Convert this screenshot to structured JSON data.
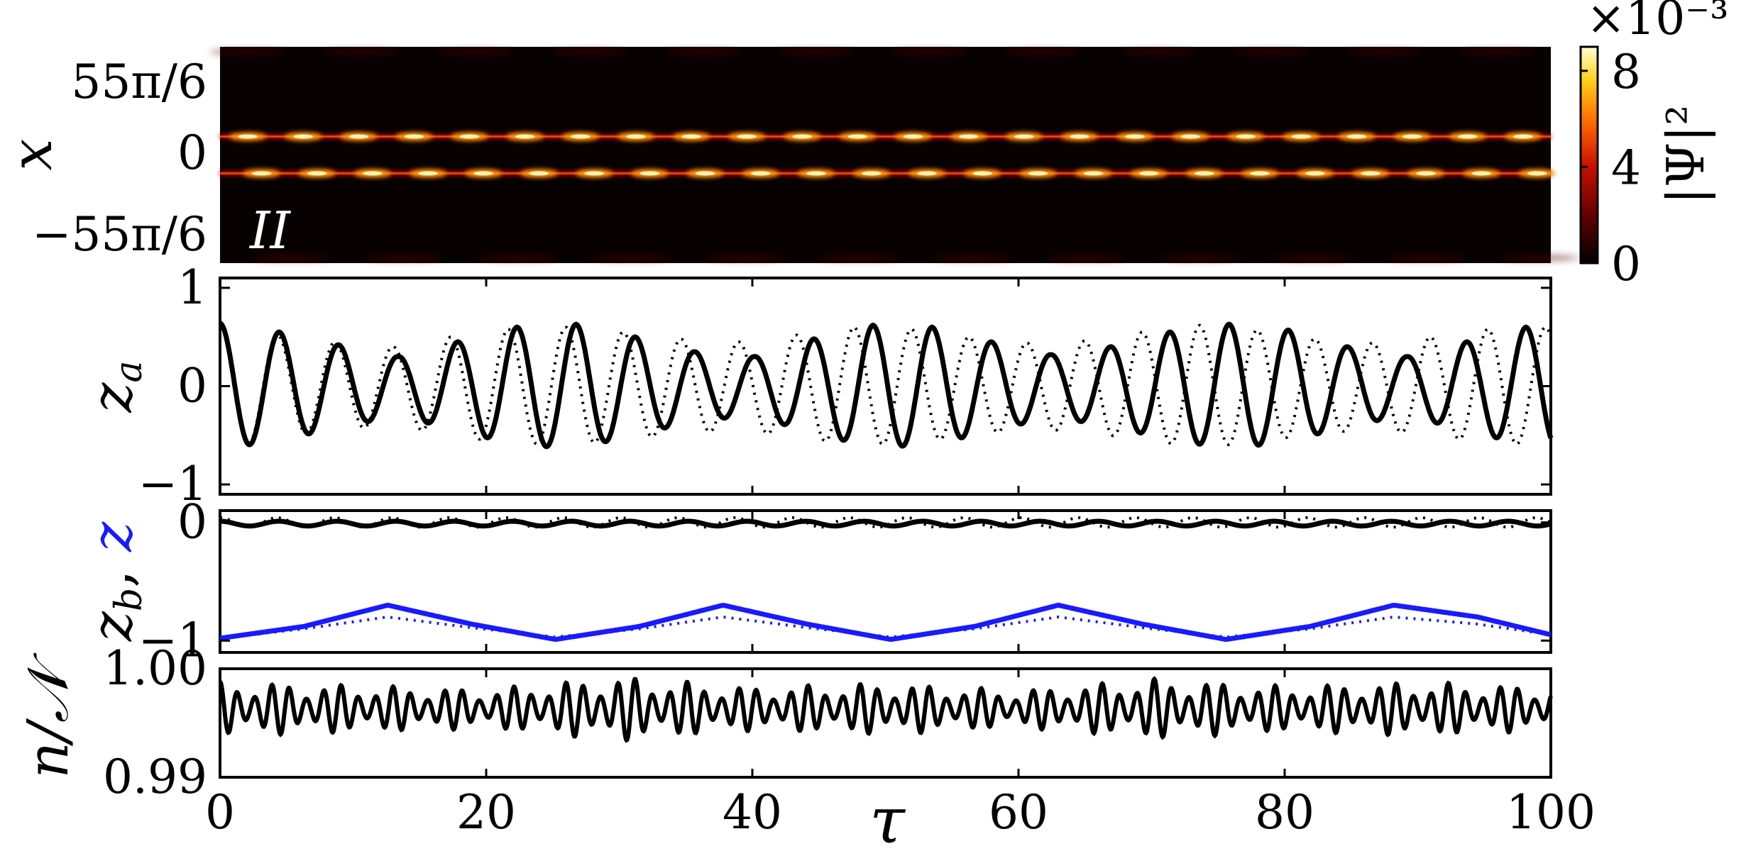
{
  "chart_data": [
    {
      "type": "heatmap",
      "panel_label": "II",
      "ylabel": "x",
      "yticks": [
        "55π/6",
        "0",
        "−55π/6"
      ],
      "ylim": [
        -28.8,
        28.8
      ],
      "xlim": [
        0,
        100
      ],
      "colorbar": {
        "label": "|Ψ|²",
        "ticks": [
          "0",
          "4",
          "8"
        ],
        "range": [
          0,
          0.009
        ],
        "exponent_label": "×10⁻³",
        "colormap": "afmhot",
        "colors": [
          "#000000",
          "#5a0000",
          "#c81000",
          "#ff6a00",
          "#ffd21a",
          "#ffffd8"
        ]
      },
      "bright_lines": [
        {
          "x_position": 4.9,
          "peak": 0.0085,
          "pulses_per_100": 24
        },
        {
          "x_position": -4.9,
          "peak": 0.0085,
          "pulses_per_100": 24
        }
      ],
      "faint_lines": [
        {
          "x_position": 27.4,
          "peak": 0.0008
        },
        {
          "x_position": -27.4,
          "peak": 0.0008
        }
      ]
    },
    {
      "type": "line",
      "ylabel": "z_a",
      "xlim": [
        0,
        100
      ],
      "ylim": [
        -1.1,
        1.1
      ],
      "yticks": [
        "1",
        "0",
        "−1"
      ],
      "series": [
        {
          "style": "solid",
          "color": "#000000",
          "x": [
            0,
            4.46,
            8.92,
            13.38,
            17.84,
            22.3,
            26.76,
            31.22,
            35.68,
            40.14,
            44.6,
            49.06,
            53.52,
            57.98,
            62.44,
            66.9,
            71.36,
            75.82,
            80.28,
            84.74,
            89.2,
            93.66,
            98.12
          ],
          "amplitude": [
            0.64,
            0.55,
            0.42,
            0.3,
            0.45,
            0.6,
            0.63,
            0.5,
            0.35,
            0.3,
            0.48,
            0.62,
            0.6,
            0.45,
            0.32,
            0.4,
            0.55,
            0.63,
            0.57,
            0.4,
            0.3,
            0.45,
            0.6
          ]
        },
        {
          "style": "dotted",
          "color": "#000000",
          "period": 4.33,
          "x": [
            0,
            4.33,
            8.66,
            12.99,
            17.32,
            21.65,
            25.98,
            30.31,
            34.64,
            38.97,
            43.3,
            47.63,
            51.96,
            56.29,
            60.62,
            64.95,
            69.28,
            73.61,
            77.94,
            82.27,
            86.6,
            90.93,
            95.26,
            99.59
          ],
          "amplitude": [
            0.64,
            0.52,
            0.45,
            0.4,
            0.5,
            0.58,
            0.6,
            0.55,
            0.48,
            0.45,
            0.52,
            0.6,
            0.58,
            0.5,
            0.44,
            0.46,
            0.55,
            0.62,
            0.57,
            0.48,
            0.44,
            0.5,
            0.58,
            0.6
          ]
        }
      ]
    },
    {
      "type": "line",
      "ylabel_parts": [
        "z_b",
        ", ",
        "z"
      ],
      "xlim": [
        0,
        100
      ],
      "ylim": [
        -1.1,
        0.1
      ],
      "yticks": [
        "0",
        "−1"
      ],
      "series": [
        {
          "name_label": "z_b",
          "style": "solid",
          "color": "#000000",
          "mean": -0.01,
          "amplitude": 0.02,
          "period": 4.4
        },
        {
          "name_label": "z_b",
          "style": "dotted",
          "color": "#000000",
          "mean": 0.0,
          "amplitude": 0.04,
          "period": 4.3
        },
        {
          "name_label": "z",
          "style": "solid",
          "color": "#1a1aff",
          "x": [
            0,
            6.3,
            12.6,
            18.9,
            25.2,
            31.5,
            37.8,
            44.1,
            50.4,
            56.7,
            63.0,
            69.3,
            75.6,
            81.9,
            88.2,
            94.5,
            100
          ],
          "y": [
            -0.98,
            -0.88,
            -0.7,
            -0.86,
            -0.99,
            -0.88,
            -0.7,
            -0.86,
            -0.99,
            -0.88,
            -0.7,
            -0.86,
            -0.99,
            -0.88,
            -0.7,
            -0.8,
            -0.95
          ]
        },
        {
          "name_label": "z",
          "style": "dotted",
          "color": "#1a1aff",
          "x": [
            0,
            6.3,
            12.6,
            18.9,
            25.2,
            31.5,
            37.8,
            44.1,
            50.4,
            56.7,
            63.0,
            69.3,
            75.6,
            81.9,
            88.2,
            94.5,
            100
          ],
          "y": [
            -0.98,
            -0.9,
            -0.8,
            -0.89,
            -0.97,
            -0.9,
            -0.8,
            -0.89,
            -0.97,
            -0.9,
            -0.8,
            -0.89,
            -0.97,
            -0.9,
            -0.8,
            -0.86,
            -0.95
          ]
        }
      ]
    },
    {
      "type": "line",
      "ylabel": "n/𝒩",
      "xlabel": "τ",
      "xlim": [
        0,
        100
      ],
      "ylim": [
        0.99,
        1.0
      ],
      "yticks": [
        "1.00",
        "0.99"
      ],
      "xticks": [
        "0",
        "20",
        "40",
        "60",
        "80",
        "100"
      ],
      "series": [
        {
          "style": "solid",
          "color": "#000000",
          "mean": 0.9963,
          "period": 1.3,
          "x": [
            0,
            10,
            20,
            30,
            40,
            50,
            60,
            70,
            80,
            90,
            100
          ],
          "amplitude": [
            0.0025,
            0.0022,
            0.0018,
            0.003,
            0.002,
            0.0024,
            0.0017,
            0.0028,
            0.0021,
            0.0025,
            0.002
          ]
        }
      ]
    }
  ]
}
